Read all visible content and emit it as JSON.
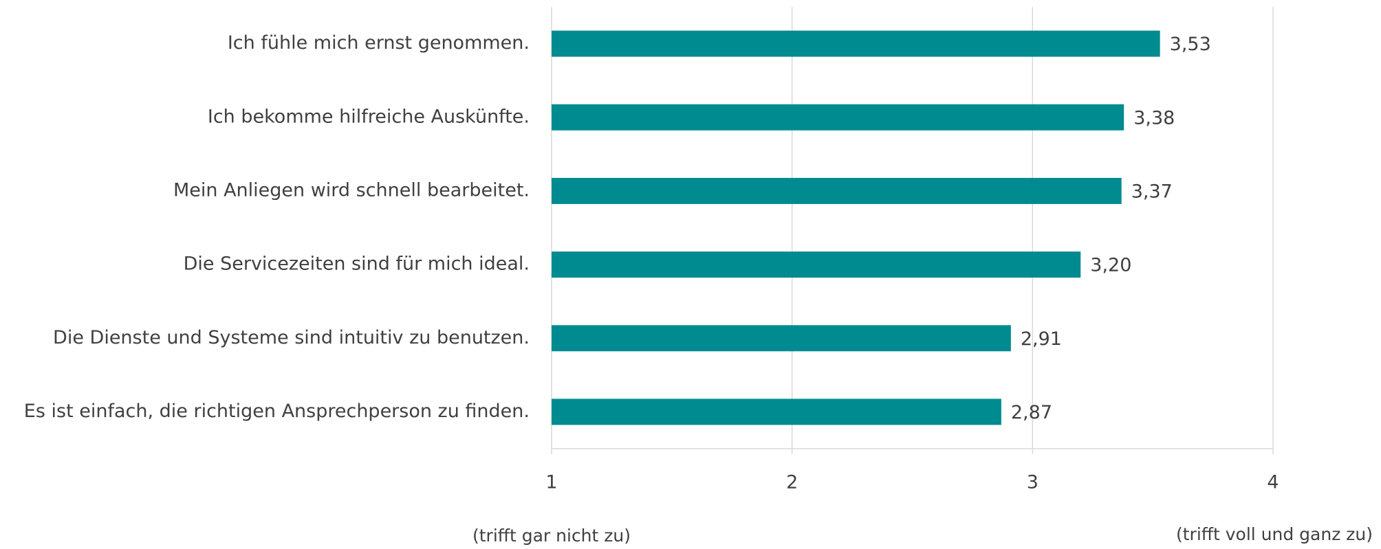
{
  "chart_data": {
    "type": "barh",
    "categories": [
      "Ich fühle mich ernst genommen.",
      "Ich bekomme hilfreiche Auskünfte.",
      "Mein Anliegen wird schnell bearbeitet.",
      "Die Servicezeiten sind für mich ideal.",
      "Die Dienste und Systeme sind intuitiv zu benutzen.",
      "Es ist einfach, die richtigen Ansprechperson zu finden."
    ],
    "values": [
      3.53,
      3.38,
      3.37,
      3.2,
      2.91,
      2.87
    ],
    "value_labels": [
      "3,53",
      "3,38",
      "3,37",
      "3,20",
      "2,91",
      "2,87"
    ],
    "color": "#008b90",
    "xlim": [
      1,
      4
    ],
    "xticks": [
      1,
      2,
      3,
      4
    ],
    "grid": true,
    "annotations": [
      "(trifft gar nicht zu)",
      "(trifft voll und ganz zu)"
    ]
  }
}
